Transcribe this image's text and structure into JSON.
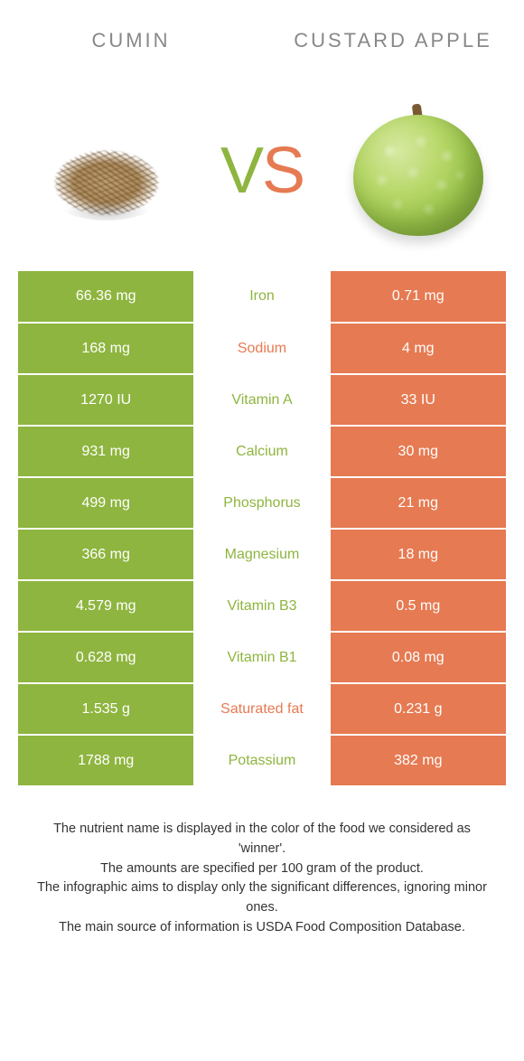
{
  "colors": {
    "left": "#8eb53f",
    "right": "#e67a52",
    "title": "#888888",
    "footer": "#333333",
    "bg": "#ffffff"
  },
  "titles": {
    "left": "CUMIN",
    "right": "CUSTARD APPLE"
  },
  "vs": {
    "v": "V",
    "s": "S"
  },
  "rows": [
    {
      "left": "66.36 mg",
      "name": "Iron",
      "right": "0.71 mg",
      "winner": "left"
    },
    {
      "left": "168 mg",
      "name": "Sodium",
      "right": "4 mg",
      "winner": "right"
    },
    {
      "left": "1270 IU",
      "name": "Vitamin A",
      "right": "33 IU",
      "winner": "left"
    },
    {
      "left": "931 mg",
      "name": "Calcium",
      "right": "30 mg",
      "winner": "left"
    },
    {
      "left": "499 mg",
      "name": "Phosphorus",
      "right": "21 mg",
      "winner": "left"
    },
    {
      "left": "366 mg",
      "name": "Magnesium",
      "right": "18 mg",
      "winner": "left"
    },
    {
      "left": "4.579 mg",
      "name": "Vitamin B3",
      "right": "0.5 mg",
      "winner": "left"
    },
    {
      "left": "0.628 mg",
      "name": "Vitamin B1",
      "right": "0.08 mg",
      "winner": "left"
    },
    {
      "left": "1.535 g",
      "name": "Saturated fat",
      "right": "0.231 g",
      "winner": "right"
    },
    {
      "left": "1788 mg",
      "name": "Potassium",
      "right": "382 mg",
      "winner": "left"
    }
  ],
  "footer": {
    "l1": "The nutrient name is displayed in the color of the food we considered as 'winner'.",
    "l2": "The amounts are specified per 100 gram of the product.",
    "l3": "The infographic aims to display only the significant differences, ignoring minor ones.",
    "l4": "The main source of information is USDA Food Composition Database."
  }
}
